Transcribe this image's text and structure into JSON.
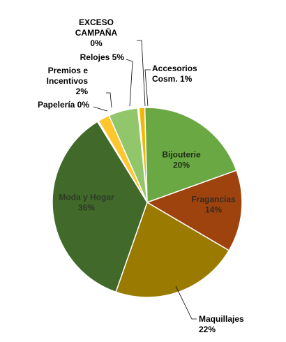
{
  "chart_data": {
    "type": "pie",
    "title": "",
    "legend": "none",
    "slices": [
      {
        "lines": [
          "Accesorios",
          "Cosm. 1%"
        ],
        "value": 1,
        "color": "#f2b705",
        "text_color": "#000000"
      },
      {
        "lines": [
          "Bijouterie",
          "20%"
        ],
        "value": 20,
        "color": "#6aa843",
        "text_color": "#1f2d16"
      },
      {
        "lines": [
          "Fragancias",
          "14%"
        ],
        "value": 14,
        "color": "#9e430d",
        "text_color": "#3a2a22"
      },
      {
        "lines": [
          "Maquillajes",
          "22%"
        ],
        "value": 22,
        "color": "#9a7b00",
        "text_color": "#000000"
      },
      {
        "lines": [
          "Moda y Hogar",
          "36%"
        ],
        "value": 36,
        "color": "#40692a",
        "text_color": "#2e3a26"
      },
      {
        "lines": [
          "Papelería 0%"
        ],
        "value": 0,
        "color": "#ffffff",
        "text_color": "#000000"
      },
      {
        "lines": [
          "Premios e",
          "Incentivos",
          "2%"
        ],
        "value": 2,
        "color": "#ffc630",
        "text_color": "#000000"
      },
      {
        "lines": [
          "Relojes 5%"
        ],
        "value": 5,
        "color": "#92c66b",
        "text_color": "#000000"
      },
      {
        "lines": [
          "EXCESO",
          "CAMPAÑA",
          "0%"
        ],
        "value": 0,
        "color": "#ffffff",
        "text_color": "#000000"
      }
    ]
  }
}
